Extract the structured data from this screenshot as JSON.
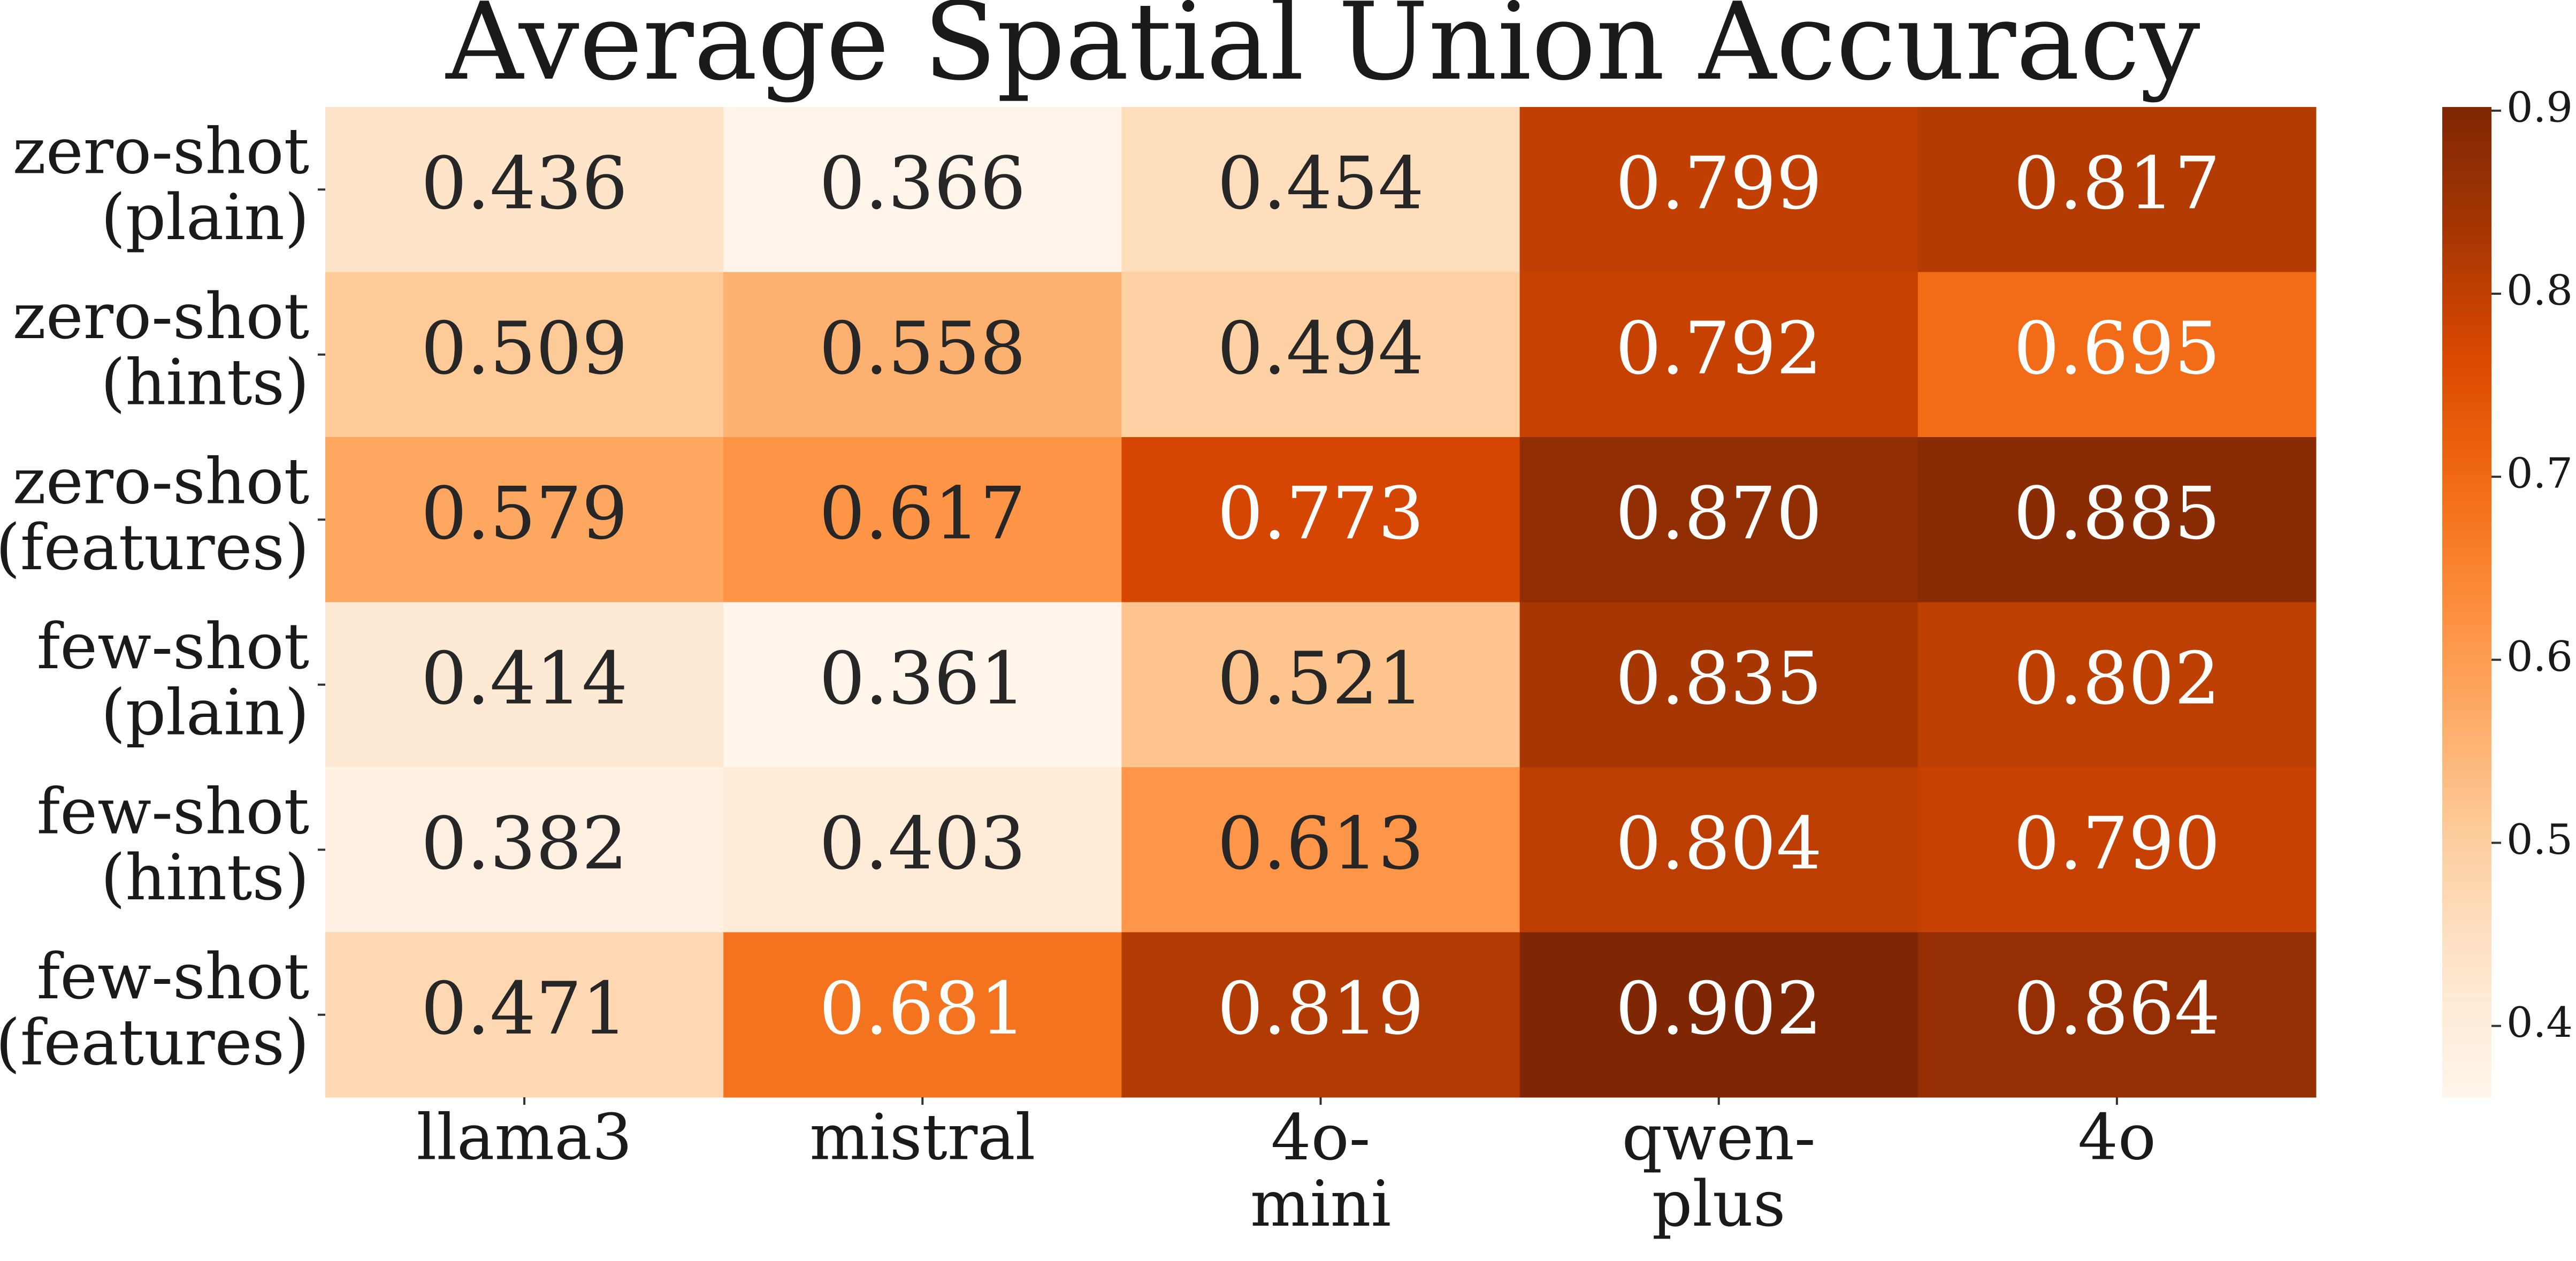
{
  "chart_data": {
    "type": "heatmap",
    "title": "Average Spatial Union Accuracy",
    "x_categories": [
      "llama3",
      "mistral",
      "4o-\nmini",
      "qwen-\nplus",
      "4o"
    ],
    "y_categories": [
      "zero-shot\n(plain)",
      "zero-shot\n(hints)",
      "zero-shot\n(features)",
      "few-shot\n(plain)",
      "few-shot\n(hints)",
      "few-shot\n(features)"
    ],
    "values": [
      [
        0.436,
        0.366,
        0.454,
        0.799,
        0.817
      ],
      [
        0.509,
        0.558,
        0.494,
        0.792,
        0.695
      ],
      [
        0.579,
        0.617,
        0.773,
        0.87,
        0.885
      ],
      [
        0.414,
        0.361,
        0.521,
        0.835,
        0.802
      ],
      [
        0.382,
        0.403,
        0.613,
        0.804,
        0.79
      ],
      [
        0.471,
        0.681,
        0.819,
        0.902,
        0.864
      ]
    ],
    "value_labels": [
      [
        "0.436",
        "0.366",
        "0.454",
        "0.799",
        "0.817"
      ],
      [
        "0.509",
        "0.558",
        "0.494",
        "0.792",
        "0.695"
      ],
      [
        "0.579",
        "0.617",
        "0.773",
        "0.870",
        "0.885"
      ],
      [
        "0.414",
        "0.361",
        "0.521",
        "0.835",
        "0.802"
      ],
      [
        "0.382",
        "0.403",
        "0.613",
        "0.804",
        "0.790"
      ],
      [
        "0.471",
        "0.681",
        "0.819",
        "0.902",
        "0.864"
      ]
    ],
    "zlim": [
      0.361,
      0.902
    ],
    "zticks": [
      0.4,
      0.5,
      0.6,
      0.7,
      0.8,
      0.9
    ],
    "colormap": [
      "#fff5eb",
      "#fee6ce",
      "#fdd0a2",
      "#fdae6b",
      "#fd8d3c",
      "#f16913",
      "#d94801",
      "#a63603",
      "#7f2704"
    ]
  }
}
